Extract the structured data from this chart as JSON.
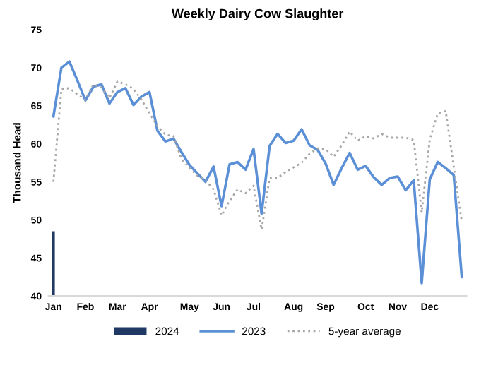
{
  "chart_data": {
    "type": "line",
    "title": "Weekly Dairy Cow Slaughter",
    "ylabel": "Thousand Head",
    "categories": [
      "Jan",
      null,
      null,
      null,
      "Feb",
      null,
      null,
      null,
      "Mar",
      null,
      null,
      null,
      "Apr",
      null,
      null,
      null,
      null,
      "May",
      null,
      null,
      null,
      "Jun",
      null,
      null,
      null,
      "Jul",
      null,
      null,
      null,
      null,
      "Aug",
      null,
      null,
      null,
      "Sep",
      null,
      null,
      null,
      null,
      "Oct",
      null,
      null,
      null,
      "Nov",
      null,
      null,
      null,
      "Dec",
      null,
      null,
      null,
      null
    ],
    "series": [
      {
        "name": "2024",
        "type": "bar",
        "color": "#1f3864",
        "values": [
          48.5,
          null,
          null,
          null,
          null,
          null,
          null,
          null,
          null,
          null,
          null,
          null,
          null,
          null,
          null,
          null,
          null,
          null,
          null,
          null,
          null,
          null,
          null,
          null,
          null,
          null,
          null,
          null,
          null,
          null,
          null,
          null,
          null,
          null,
          null,
          null,
          null,
          null,
          null,
          null,
          null,
          null,
          null,
          null,
          null,
          null,
          null,
          null,
          null,
          null,
          null,
          null
        ]
      },
      {
        "name": "2023",
        "color": "#5b8fd6",
        "line_style": "solid",
        "values": [
          63.6,
          70,
          70.8,
          68.3,
          65.7,
          67.5,
          67.8,
          65.3,
          66.8,
          67.3,
          65.1,
          66.2,
          66.8,
          61.7,
          60.3,
          60.7,
          58.9,
          57.2,
          56.1,
          55.0,
          57.0,
          51.8,
          57.3,
          57.6,
          56.6,
          59.3,
          50.8,
          59.7,
          61.3,
          60.1,
          60.4,
          61.9,
          59.8,
          59.2,
          57.4,
          54.6,
          56.8,
          58.8,
          56.6,
          57.1,
          55.6,
          54.6,
          55.5,
          55.7,
          53.9,
          55.2,
          41.7,
          55.3,
          57.6,
          56.8,
          55.9,
          42.5
        ]
      },
      {
        "name": "5-year average",
        "color": "#a6a6a6",
        "line_style": "dotted",
        "values": [
          55.0,
          67.2,
          67.3,
          66.5,
          65.8,
          67.8,
          67.4,
          66.0,
          68.2,
          67.8,
          67.2,
          65.8,
          64.0,
          62.3,
          61.2,
          61.0,
          58.0,
          56.8,
          55.8,
          55.2,
          54.0,
          50.6,
          52.5,
          54.0,
          53.5,
          54.5,
          48.7,
          55.5,
          55.5,
          56.3,
          56.9,
          57.5,
          58.7,
          59.4,
          59.3,
          58.3,
          59.8,
          61.6,
          60.4,
          61.0,
          60.7,
          61.3,
          60.8,
          60.8,
          60.8,
          60.5,
          51.0,
          60.5,
          64.0,
          64.3,
          57.0,
          49.8
        ]
      }
    ],
    "ylim": [
      40,
      75
    ],
    "yticks": [
      40,
      45,
      50,
      55,
      60,
      65,
      70,
      75
    ],
    "grid": false,
    "legend": "bottom",
    "marker": "none"
  }
}
